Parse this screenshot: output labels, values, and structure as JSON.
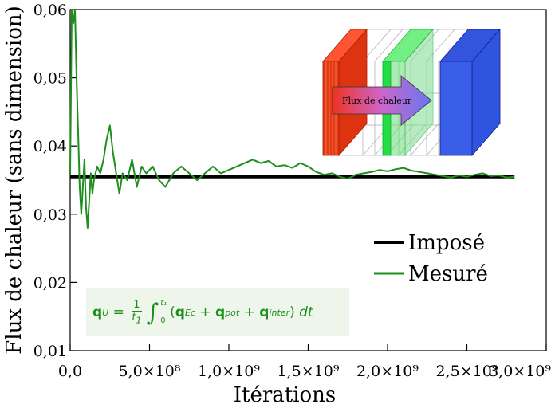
{
  "chart_data": {
    "type": "line",
    "xlabel": "Itérations",
    "ylabel": "Flux de chaleur (sans dimension)",
    "xlim": [
      0,
      3000000000.0
    ],
    "ylim": [
      0.01,
      0.06
    ],
    "x_ticks": [
      {
        "value": 0,
        "label": "0,0"
      },
      {
        "value": 500000000.0,
        "label": "5,0×10⁸"
      },
      {
        "value": 1000000000.0,
        "label": "1,0×10⁹"
      },
      {
        "value": 1500000000.0,
        "label": "1,5×10⁹"
      },
      {
        "value": 2000000000.0,
        "label": "2,0×10⁹"
      },
      {
        "value": 2500000000.0,
        "label": "2,5×10⁹"
      },
      {
        "value": 3000000000.0,
        "label": "3,0×10⁹"
      }
    ],
    "y_ticks": [
      {
        "value": 0.01,
        "label": "0,01"
      },
      {
        "value": 0.02,
        "label": "0,02"
      },
      {
        "value": 0.03,
        "label": "0,03"
      },
      {
        "value": 0.04,
        "label": "0,04"
      },
      {
        "value": 0.05,
        "label": "0,05"
      },
      {
        "value": 0.06,
        "label": "0,06"
      }
    ],
    "legend_position": "bottom-right",
    "series": [
      {
        "name": "Imposé",
        "color": "#000000",
        "x": [
          0,
          2800000000.0
        ],
        "y": [
          0.0355,
          0.0355
        ]
      },
      {
        "name": "Mesuré",
        "color": "#1c8f1c",
        "x": [
          0,
          10000000.0,
          20000000.0,
          30000000.0,
          40000000.0,
          50000000.0,
          60000000.0,
          70000000.0,
          80000000.0,
          90000000.0,
          100000000.0,
          110000000.0,
          120000000.0,
          130000000.0,
          140000000.0,
          150000000.0,
          170000000.0,
          190000000.0,
          210000000.0,
          230000000.0,
          250000000.0,
          270000000.0,
          290000000.0,
          310000000.0,
          330000000.0,
          360000000.0,
          390000000.0,
          420000000.0,
          450000000.0,
          480000000.0,
          520000000.0,
          560000000.0,
          600000000.0,
          650000000.0,
          700000000.0,
          750000000.0,
          800000000.0,
          850000000.0,
          900000000.0,
          950000000.0,
          1000000000.0,
          1050000000.0,
          1100000000.0,
          1150000000.0,
          1200000000.0,
          1250000000.0,
          1300000000.0,
          1350000000.0,
          1400000000.0,
          1450000000.0,
          1500000000.0,
          1550000000.0,
          1600000000.0,
          1650000000.0,
          1700000000.0,
          1750000000.0,
          1800000000.0,
          1850000000.0,
          1900000000.0,
          1950000000.0,
          2000000000.0,
          2050000000.0,
          2100000000.0,
          2150000000.0,
          2200000000.0,
          2250000000.0,
          2300000000.0,
          2350000000.0,
          2400000000.0,
          2450000000.0,
          2500000000.0,
          2550000000.0,
          2600000000.0,
          2650000000.0,
          2700000000.0,
          2750000000.0,
          2800000000.0
        ],
        "y": [
          0.036,
          0.06,
          0.058,
          0.062,
          0.05,
          0.042,
          0.034,
          0.03,
          0.034,
          0.038,
          0.031,
          0.028,
          0.032,
          0.036,
          0.033,
          0.035,
          0.037,
          0.036,
          0.038,
          0.041,
          0.043,
          0.039,
          0.036,
          0.033,
          0.036,
          0.035,
          0.038,
          0.034,
          0.037,
          0.036,
          0.037,
          0.035,
          0.034,
          0.036,
          0.037,
          0.036,
          0.035,
          0.036,
          0.037,
          0.036,
          0.0365,
          0.037,
          0.0375,
          0.038,
          0.0375,
          0.0378,
          0.037,
          0.0372,
          0.0368,
          0.0375,
          0.037,
          0.0362,
          0.0358,
          0.036,
          0.0355,
          0.0352,
          0.0358,
          0.036,
          0.0362,
          0.0365,
          0.0363,
          0.0366,
          0.0368,
          0.0364,
          0.0362,
          0.036,
          0.0358,
          0.0356,
          0.0354,
          0.0357,
          0.0355,
          0.0358,
          0.036,
          0.0356,
          0.0357,
          0.0354,
          0.0355
        ]
      }
    ]
  },
  "inset": {
    "label": "Flux de chaleur"
  },
  "formula": {
    "lhs": "q",
    "lhs_sub": "U",
    "eq": " = ",
    "frac_num": "1",
    "frac_den": "t",
    "frac_den_sub": "1",
    "int_upper": "t₁",
    "int_lower": "0",
    "open": "(",
    "t1": "q",
    "t1_sub": "Ec",
    "plus1": " + ",
    "t2": "q",
    "t2_sub": "pot",
    "plus2": " + ",
    "t3": "q",
    "t3_sub": "inter",
    "close": ")",
    "dt": " dt"
  }
}
